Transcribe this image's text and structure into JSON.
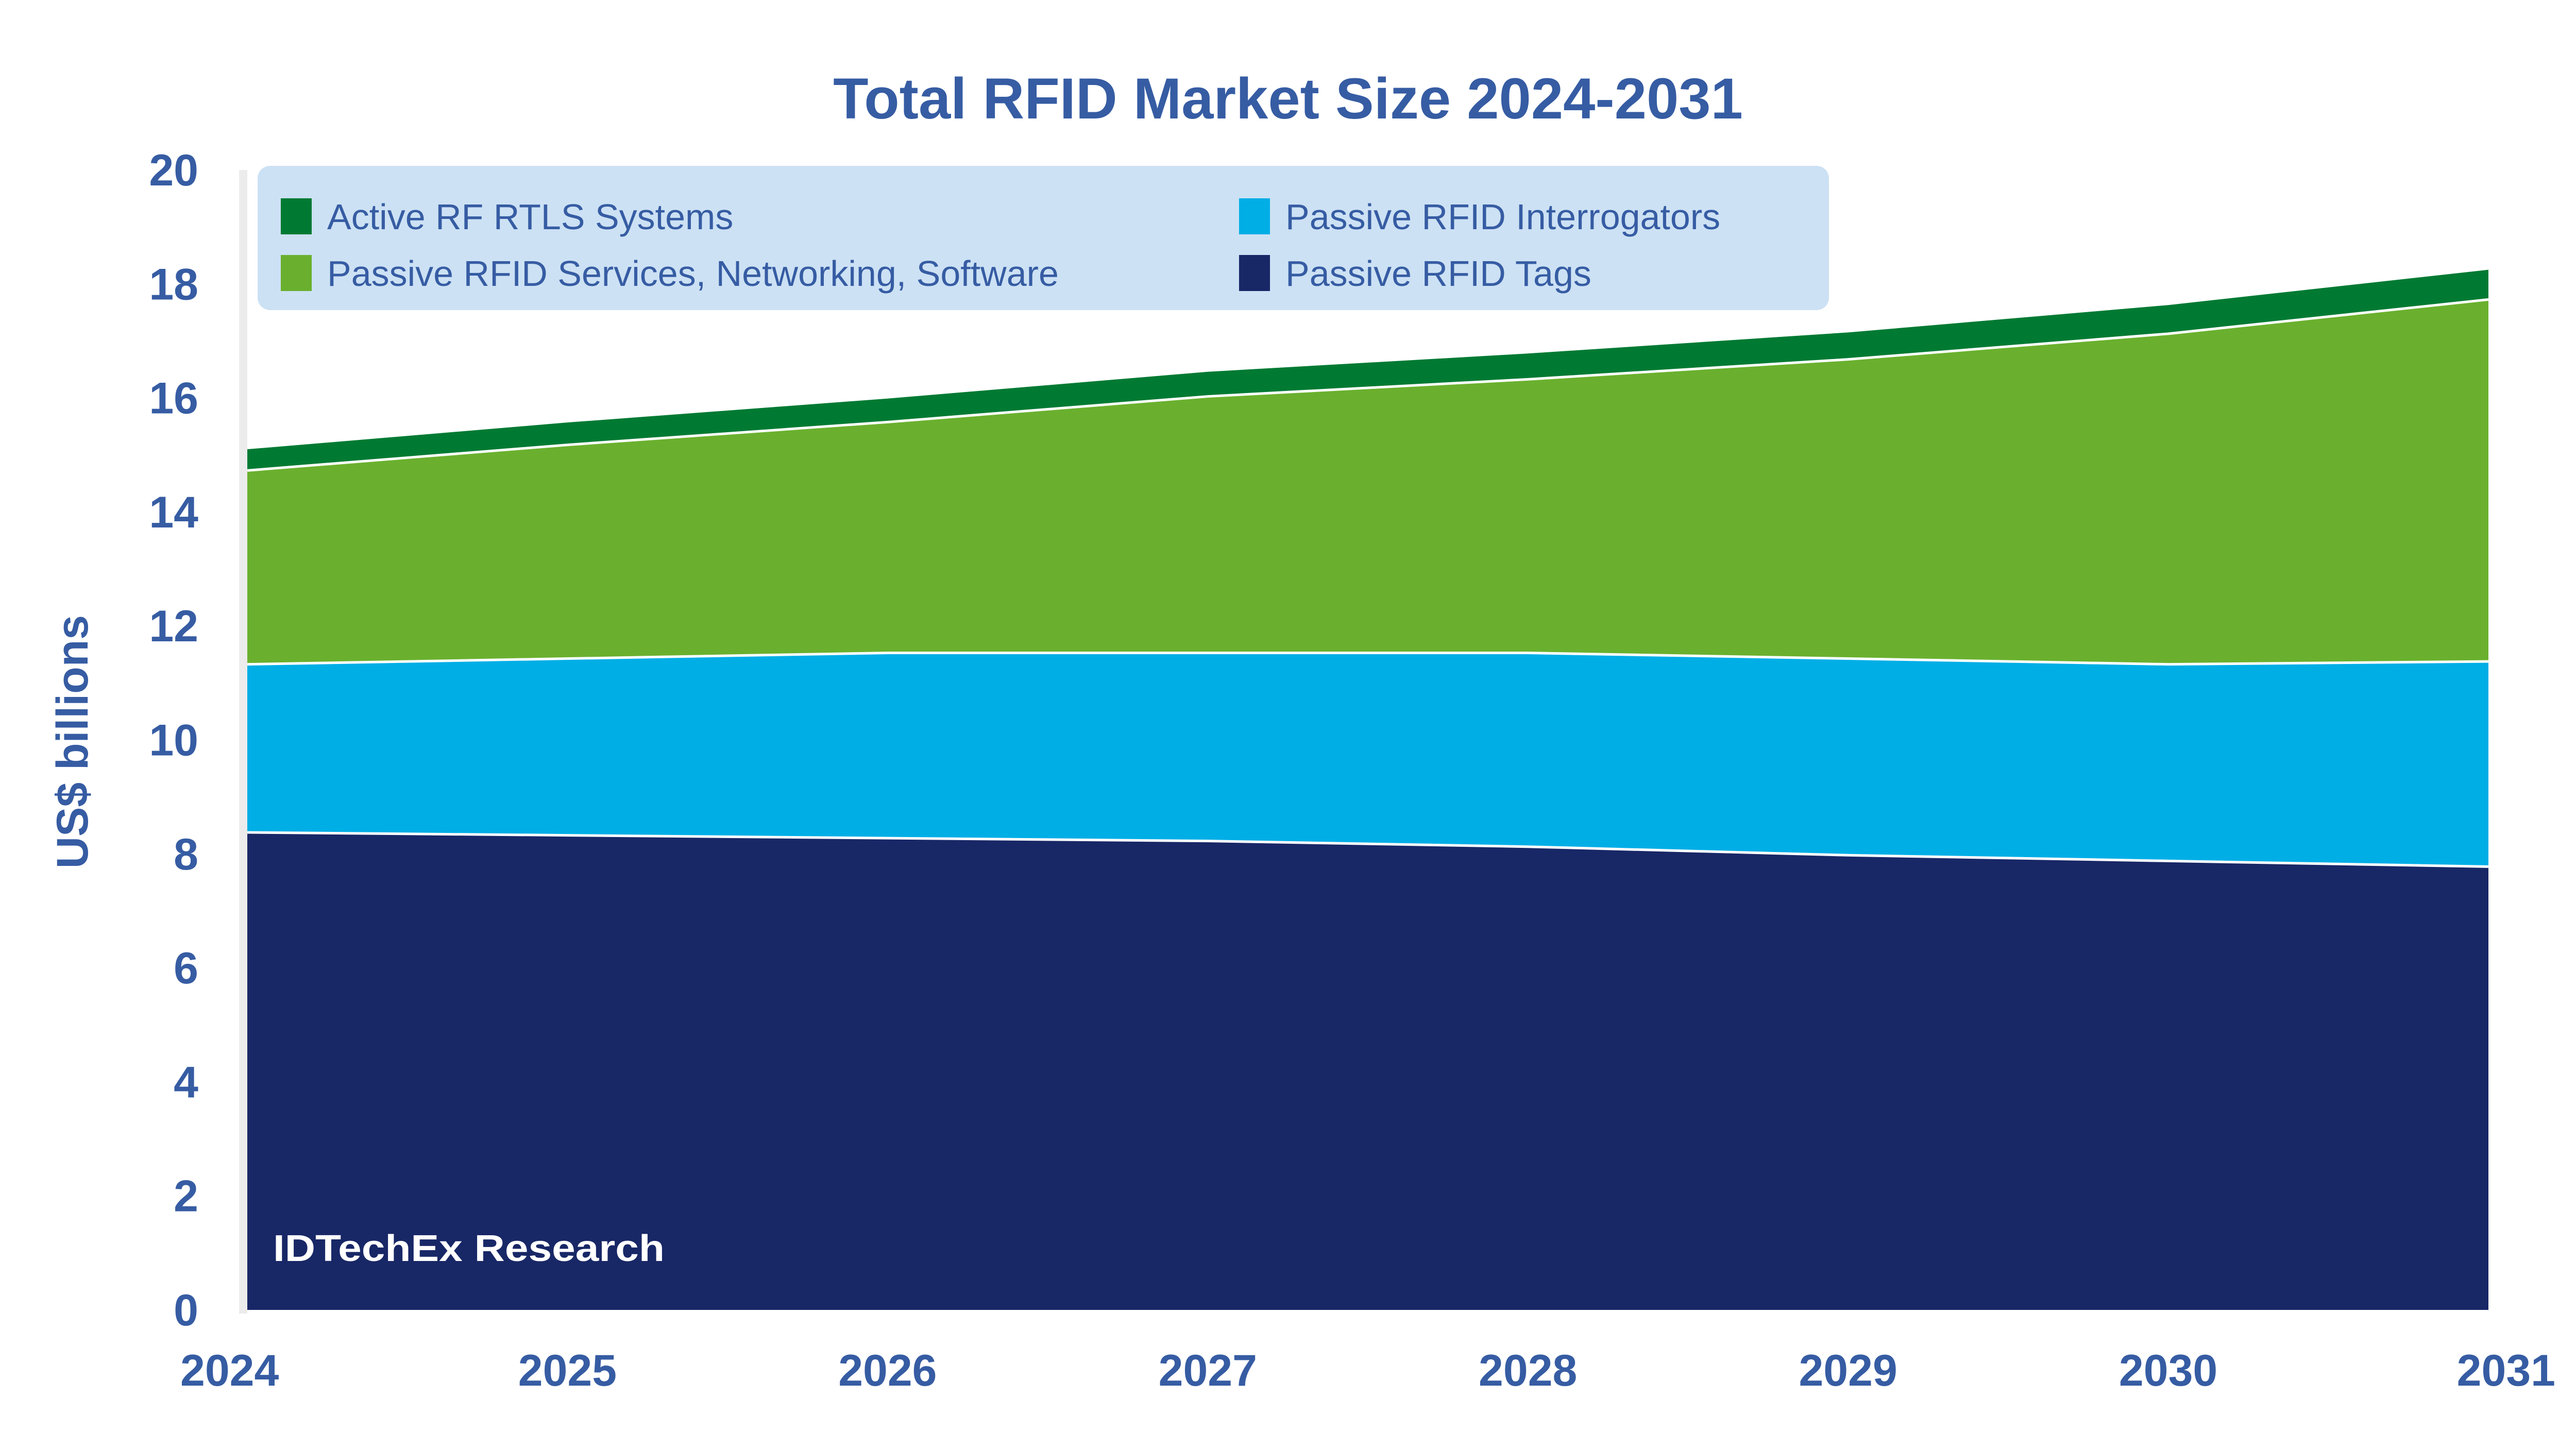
{
  "chart_data": {
    "type": "area",
    "stacked": true,
    "title": "Total RFID Market Size 2024-2031",
    "xlabel": "",
    "ylabel": "US$ billions",
    "categories": [
      "2024",
      "2025",
      "2026",
      "2027",
      "2028",
      "2029",
      "2030",
      "2031"
    ],
    "ylim": [
      0,
      20
    ],
    "yticks": [
      "0",
      "2",
      "4",
      "6",
      "8",
      "10",
      "12",
      "14",
      "16",
      "18",
      "20"
    ],
    "grid": false,
    "legend_position": "top-left",
    "series": [
      {
        "name": "Passive RFID Tags",
        "color": "#182766",
        "values": [
          8.4,
          8.35,
          8.3,
          8.25,
          8.15,
          8.0,
          7.9,
          7.8
        ]
      },
      {
        "name": "Passive RFID Interrogators",
        "color": "#00aee6",
        "values": [
          2.95,
          3.1,
          3.25,
          3.3,
          3.4,
          3.45,
          3.45,
          3.6
        ]
      },
      {
        "name": "Passive RFID Services, Networking, Software",
        "color": "#6ab02e",
        "values": [
          3.4,
          3.75,
          4.05,
          4.5,
          4.8,
          5.25,
          5.8,
          6.35
        ]
      },
      {
        "name": "Active RF RTLS Systems",
        "color": "#007a33",
        "values": [
          0.35,
          0.37,
          0.39,
          0.41,
          0.43,
          0.45,
          0.48,
          0.5
        ]
      }
    ],
    "legend_order": [
      3,
      1,
      2,
      0
    ]
  },
  "logo": {
    "text": "IDTechEx Research"
  },
  "colors": {
    "text": "#365ca3",
    "legend_bg": "#cce1f4",
    "axis": "#ececec"
  }
}
